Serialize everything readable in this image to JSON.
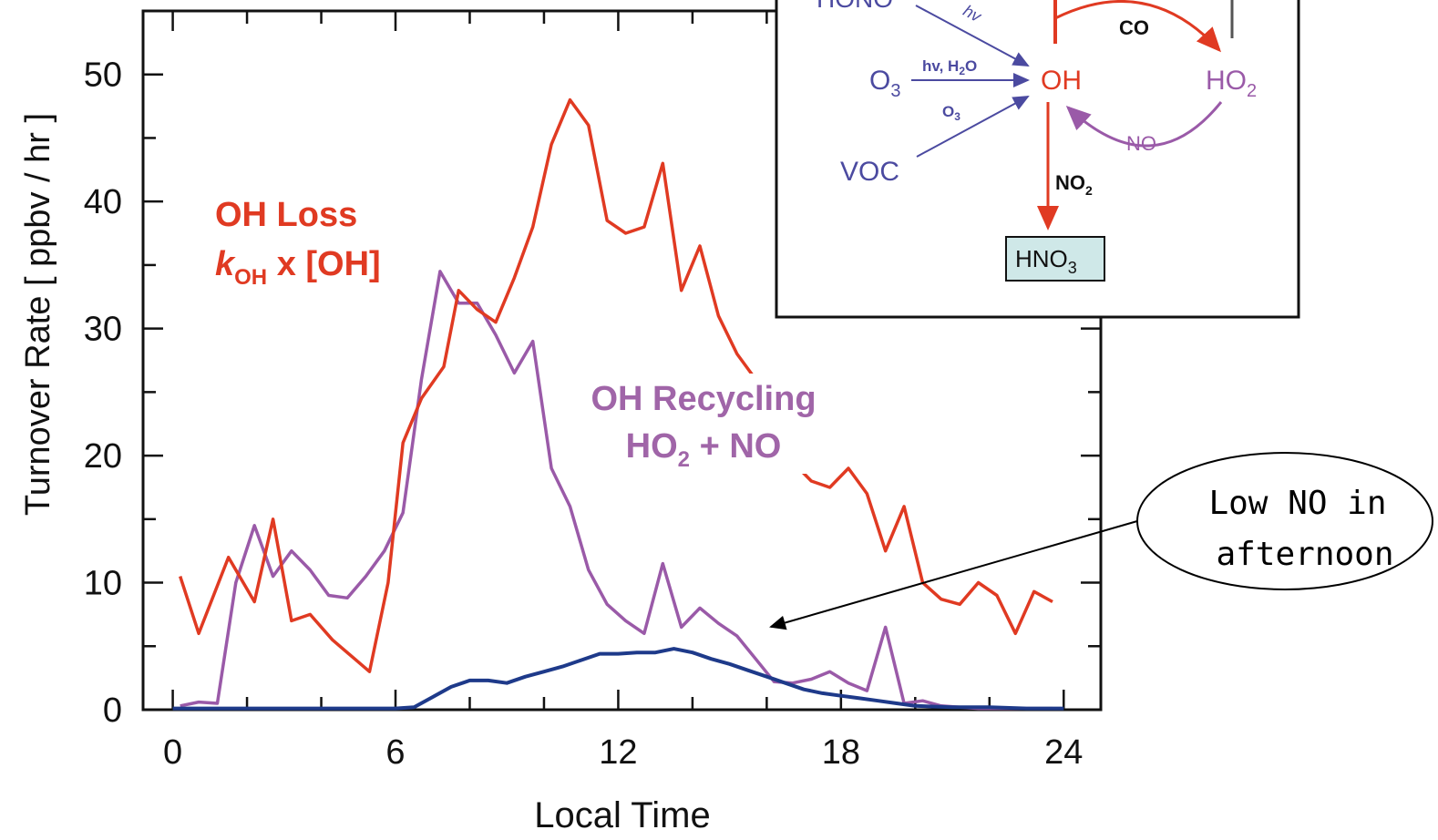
{
  "chart_data": {
    "type": "line",
    "xlabel": "Local Time",
    "ylabel": "Turnover Rate  [ ppbv / hr ]",
    "xlim": [
      -0.8,
      25
    ],
    "ylim": [
      0,
      55
    ],
    "xticks": [
      0,
      6,
      12,
      18,
      24
    ],
    "yticks": [
      0,
      10,
      20,
      30,
      40,
      50
    ],
    "xtick_labels": [
      "0",
      "6",
      "12",
      "18",
      "24"
    ],
    "ytick_labels": [
      "0",
      "10",
      "20",
      "30",
      "40",
      "50"
    ],
    "grid": false,
    "series": [
      {
        "key": "loss",
        "color": "#e03a22",
        "x": [
          0.2,
          0.7,
          1.5,
          2.2,
          2.7,
          3.2,
          3.7,
          4.3,
          4.9,
          5.3,
          5.8,
          6.2,
          6.7,
          7.3,
          7.7,
          8.2,
          8.7,
          9.2,
          9.7,
          10.2,
          10.7,
          11.2,
          11.7,
          12.2,
          12.7,
          13.2,
          13.7,
          14.2,
          14.7,
          15.2,
          15.7,
          16.2,
          16.7,
          17.2,
          17.7,
          18.2,
          18.7,
          19.2,
          19.7,
          20.2,
          20.7,
          21.2,
          21.7,
          22.2,
          22.7,
          23.2,
          23.7
        ],
        "values": [
          10.5,
          6,
          12,
          8.5,
          15,
          7,
          7.5,
          5.5,
          4,
          3,
          10,
          21,
          24.5,
          27,
          33,
          31.5,
          30.5,
          34,
          38,
          44.5,
          48,
          46,
          38.5,
          37.5,
          38,
          43,
          33,
          36.5,
          31,
          28,
          26,
          21,
          19.5,
          18,
          17.5,
          19,
          17,
          12.5,
          16,
          10,
          8.7,
          8.3,
          10,
          9,
          6,
          9.3,
          8.5
        ]
      },
      {
        "key": "recycling",
        "color": "#9a5aa8",
        "x": [
          0.2,
          0.7,
          1.2,
          1.7,
          2.2,
          2.7,
          3.2,
          3.7,
          4.2,
          4.7,
          5.2,
          5.7,
          6.2,
          6.7,
          7.2,
          7.7,
          8.2,
          8.7,
          9.2,
          9.7,
          10.2,
          10.7,
          11.2,
          11.7,
          12.2,
          12.7,
          13.2,
          13.7,
          14.2,
          14.7,
          15.2,
          15.7,
          16.2,
          16.7,
          17.2,
          17.7,
          18.2,
          18.7,
          19.2,
          19.7,
          20.2,
          20.7,
          21.2,
          21.7,
          22.2,
          22.7,
          23.2,
          23.7
        ],
        "values": [
          0.3,
          0.6,
          0.5,
          10,
          14.5,
          10.5,
          12.5,
          11,
          9,
          8.8,
          10.5,
          12.5,
          15.5,
          26,
          34.5,
          32,
          32,
          29.5,
          26.5,
          29,
          19,
          16,
          11,
          8.3,
          7,
          6,
          11.5,
          6.5,
          8,
          6.8,
          5.8,
          4,
          2.2,
          2.1,
          2.4,
          3,
          2.1,
          1.5,
          6.5,
          0.5,
          0.7,
          0.3,
          0.2,
          0.1,
          0.1,
          0.1,
          0.1,
          0.1
        ]
      },
      {
        "key": "low_no",
        "color": "#1e3a8a",
        "x": [
          0,
          1,
          2,
          3,
          4,
          5,
          6,
          6.5,
          7,
          7.5,
          8,
          8.5,
          9,
          9.5,
          10,
          10.5,
          11,
          11.5,
          12,
          12.5,
          13,
          13.5,
          14,
          14.5,
          15,
          15.5,
          16,
          16.5,
          17,
          17.5,
          18,
          18.5,
          19,
          19.5,
          20,
          21,
          22,
          23,
          24
        ],
        "values": [
          0.1,
          0.1,
          0.1,
          0.1,
          0.1,
          0.1,
          0.1,
          0.2,
          1,
          1.8,
          2.3,
          2.3,
          2.1,
          2.6,
          3,
          3.4,
          3.9,
          4.4,
          4.4,
          4.5,
          4.5,
          4.8,
          4.5,
          4,
          3.6,
          3.1,
          2.6,
          2.1,
          1.6,
          1.3,
          1.1,
          0.9,
          0.7,
          0.5,
          0.3,
          0.2,
          0.2,
          0.1,
          0.1
        ]
      }
    ]
  },
  "annotations": {
    "loss_line1": "OH Loss",
    "loss_k": "k",
    "loss_sub": "OH",
    "loss_rest": " x [OH]",
    "recycling_line1": "OH Recycling",
    "recycling_ho": "HO",
    "recycling_sub": "2",
    "recycling_rest": " + NO",
    "callout_line1": "Low NO in",
    "callout_line2": "afternoon"
  },
  "inset": {
    "hono": "HONO",
    "hv": "hv",
    "o3": "O",
    "o3_sub": "3",
    "hv_h2o": "hv, H",
    "hv_h2o_sub": "2",
    "hv_h2o_end": "O",
    "o3_small": "O",
    "o3_small_sub": "3",
    "voc": "VOC",
    "oh": "OH",
    "co": "CO",
    "ho2": "HO",
    "ho2_sub": "2",
    "no": "NO",
    "no2": "NO",
    "no2_sub": "2",
    "hno3": "HNO",
    "hno3_sub": "3",
    "colors": {
      "red": "#e03a22",
      "purple": "#9a5aa8",
      "blue": "#4b4aa0",
      "hno3_box": "#cfe8e8"
    }
  }
}
